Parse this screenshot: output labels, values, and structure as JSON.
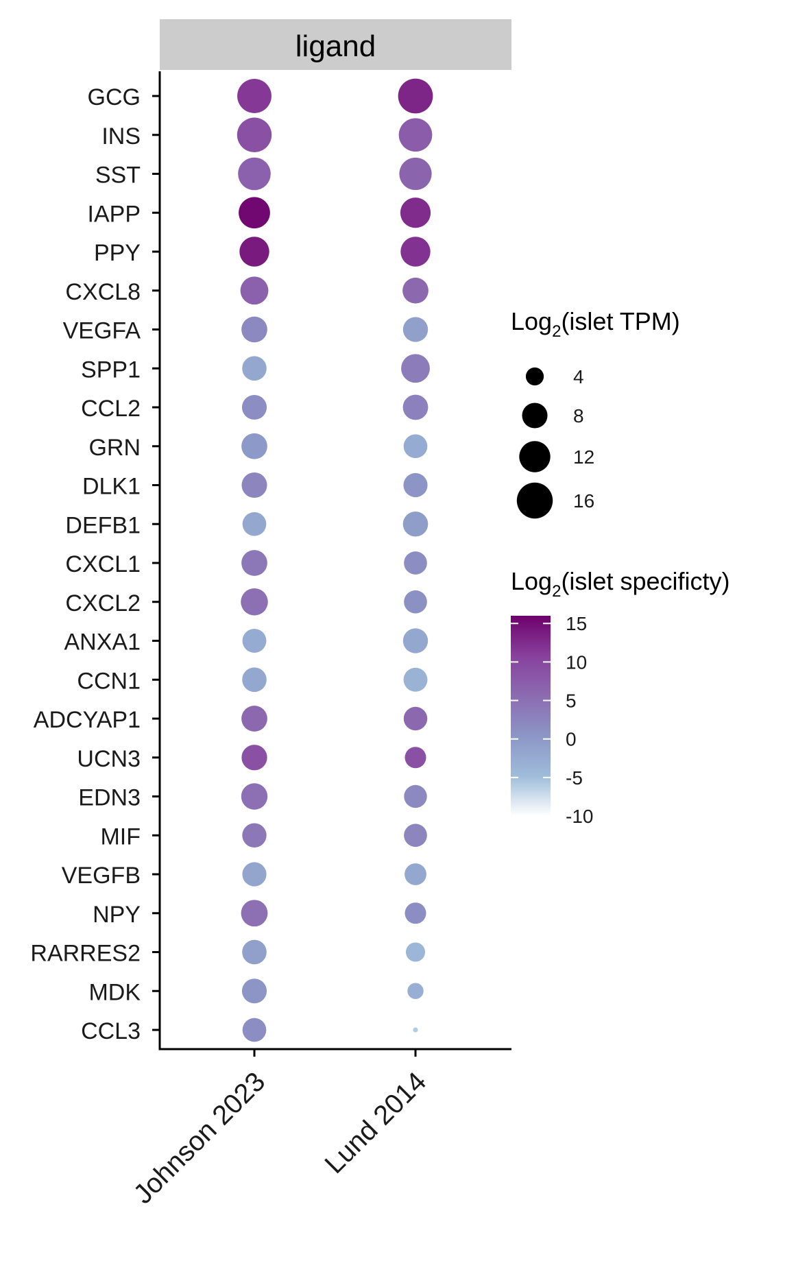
{
  "chart_data": {
    "type": "dot",
    "facet_label": "ligand",
    "x_categories": [
      "Johnson 2023",
      "Lund 2014"
    ],
    "y_categories": [
      "GCG",
      "INS",
      "SST",
      "IAPP",
      "PPY",
      "CXCL8",
      "VEGFA",
      "SPP1",
      "CCL2",
      "GRN",
      "DLK1",
      "DEFB1",
      "CXCL1",
      "CXCL2",
      "ANXA1",
      "CCN1",
      "ADCYAP1",
      "UCN3",
      "EDN3",
      "MIF",
      "VEGFB",
      "NPY",
      "RARRES2",
      "MDK",
      "CCL3"
    ],
    "size_legend": {
      "title_prefix": "Log",
      "title_sub": "2",
      "title_suffix": "(islet TPM)",
      "values": [
        4,
        8,
        12,
        16
      ],
      "labels": [
        "4",
        "8",
        "12",
        "16"
      ]
    },
    "color_legend": {
      "title_prefix": "Log",
      "title_sub": "2",
      "title_suffix": "(islet specificty)",
      "range": [
        -10,
        16
      ],
      "ticks": [
        15,
        10,
        5,
        0,
        -5,
        -10
      ],
      "tick_labels": [
        "15",
        "10",
        "5",
        "0",
        "-5",
        "-10"
      ],
      "colors": [
        "#ffffff",
        "#9ebcda",
        "#8c96c6",
        "#8c6bb1",
        "#88419d",
        "#6e016b"
      ]
    },
    "series": [
      {
        "dataset": "Johnson 2023",
        "size": [
          14.5,
          14.8,
          13.2,
          12.2,
          11.0,
          9.7,
          8.3,
          7.4,
          7.6,
          8.3,
          8.0,
          7.0,
          8.3,
          9.1,
          7.1,
          7.4,
          8.3,
          8.1,
          8.6,
          7.3,
          7.2,
          8.8,
          7.4,
          7.6,
          7.0
        ],
        "color": [
          11.5,
          9.0,
          7.0,
          15.5,
          14.0,
          7.0,
          2.0,
          -2.0,
          1.5,
          0.0,
          2.5,
          -2.0,
          4.0,
          5.0,
          -2.5,
          -2.0,
          6.0,
          9.0,
          5.0,
          4.0,
          -1.5,
          5.0,
          -1.0,
          0.5,
          1.5
        ]
      },
      {
        "dataset": "Lund 2014",
        "size": [
          15.0,
          13.8,
          13.0,
          11.4,
          11.0,
          8.3,
          7.7,
          10.2,
          7.9,
          7.0,
          7.2,
          7.8,
          6.6,
          6.6,
          7.7,
          7.1,
          6.9,
          5.6,
          6.5,
          6.6,
          5.9,
          5.6,
          4.6,
          3.2,
          0.3
        ],
        "color": [
          13.0,
          7.5,
          6.5,
          12.5,
          12.0,
          6.0,
          -1.0,
          3.5,
          3.0,
          -2.5,
          0.5,
          -0.5,
          1.5,
          1.0,
          -2.0,
          -3.5,
          6.0,
          9.0,
          2.0,
          2.5,
          -2.0,
          1.5,
          -4.0,
          -3.0,
          -6.0
        ]
      }
    ]
  }
}
